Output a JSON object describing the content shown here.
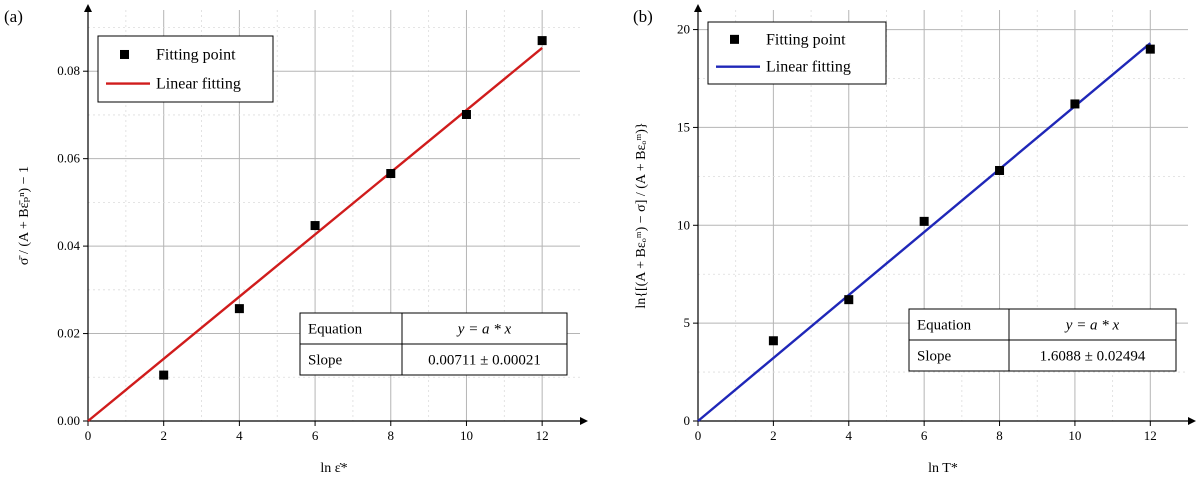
{
  "chart_data": [
    {
      "panel_label": "(a)",
      "type": "scatter",
      "xlabel": "ln ε̇*",
      "ylabel": "σ̄ / (A + Bε̄ₚⁿ) − 1",
      "xlim": [
        0,
        13
      ],
      "ylim": [
        0.0,
        0.094
      ],
      "xticks": [
        0,
        2,
        4,
        6,
        8,
        10,
        12
      ],
      "xtick_labels": [
        "0",
        "2",
        "4",
        "6",
        "8",
        "10",
        "12"
      ],
      "yticks": [
        0.0,
        0.02,
        0.04,
        0.06,
        0.08
      ],
      "ytick_labels": [
        "0.00",
        "0.02",
        "0.04",
        "0.06",
        "0.08"
      ],
      "grid": true,
      "legend_position": "top-left",
      "series": [
        {
          "name": "Fitting point",
          "kind": "scatter",
          "marker": "square",
          "color": "#000000",
          "x": [
            2,
            4,
            6,
            8,
            10,
            12
          ],
          "y": [
            0.0105,
            0.0257,
            0.0447,
            0.0566,
            0.0701,
            0.087
          ]
        },
        {
          "name": "Linear fitting",
          "kind": "line",
          "color": "#d01c1c",
          "x": [
            0,
            12
          ],
          "y": [
            0,
            0.08532
          ]
        }
      ],
      "fit_table": {
        "equation_label": "Equation",
        "equation_value": "y = a * x",
        "slope_label": "Slope",
        "slope_value": "0.00711 ± 0.00021"
      }
    },
    {
      "panel_label": "(b)",
      "type": "scatter",
      "xlabel": "ln T*",
      "ylabel": "ln{[(A + Bεₒᵐ) − σ] / (A + Bεₒᵐ)}",
      "xlim": [
        0,
        13
      ],
      "ylim": [
        0,
        21
      ],
      "xticks": [
        0,
        2,
        4,
        6,
        8,
        10,
        12
      ],
      "xtick_labels": [
        "0",
        "2",
        "4",
        "6",
        "8",
        "10",
        "12"
      ],
      "yticks": [
        0,
        5,
        10,
        15,
        20
      ],
      "ytick_labels": [
        "0",
        "5",
        "10",
        "15",
        "20"
      ],
      "grid": true,
      "legend_position": "top-left",
      "series": [
        {
          "name": "Fitting point",
          "kind": "scatter",
          "marker": "square",
          "color": "#000000",
          "x": [
            2,
            4,
            6,
            8,
            10,
            12
          ],
          "y": [
            4.1,
            6.2,
            10.2,
            12.8,
            16.2,
            19.0
          ]
        },
        {
          "name": "Linear fitting",
          "kind": "line",
          "color": "#1f27b8",
          "x": [
            0,
            12
          ],
          "y": [
            0,
            19.3056
          ]
        }
      ],
      "fit_table": {
        "equation_label": "Equation",
        "equation_value": "y = a * x",
        "slope_label": "Slope",
        "slope_value": "1.6088 ± 0.02494"
      }
    }
  ]
}
